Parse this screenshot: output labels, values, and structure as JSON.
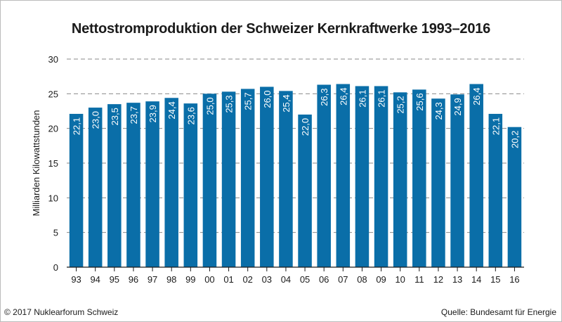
{
  "chart_data": {
    "type": "bar",
    "title": "Nettostromproduktion der Schweizer Kernkraftwerke 1993–2016",
    "ylabel": "Milliarden Kilowattstunden",
    "xlabel": "",
    "ylim": [
      0,
      30
    ],
    "yticks": [
      "0",
      "5",
      "10",
      "15",
      "20",
      "25",
      "30"
    ],
    "grid": true,
    "bar_color": "#0a6ea8",
    "categories": [
      "93",
      "94",
      "95",
      "96",
      "97",
      "98",
      "99",
      "00",
      "01",
      "02",
      "03",
      "04",
      "05",
      "06",
      "07",
      "08",
      "09",
      "10",
      "11",
      "12",
      "13",
      "14",
      "15",
      "16"
    ],
    "values": [
      22.1,
      23.0,
      23.5,
      23.7,
      23.9,
      24.4,
      23.6,
      25.0,
      25.3,
      25.7,
      26.0,
      25.4,
      22.0,
      26.3,
      26.4,
      26.1,
      26.1,
      25.2,
      25.6,
      24.3,
      24.9,
      26.4,
      22.1,
      20.2
    ],
    "value_labels": [
      "22,1",
      "23,0",
      "23,5",
      "23,7",
      "23,9",
      "24,4",
      "23,6",
      "25,0",
      "25,3",
      "25,7",
      "26,0",
      "25,4",
      "22,0",
      "26,3",
      "26,4",
      "26,1",
      "26,1",
      "25,2",
      "25,6",
      "24,3",
      "24,9",
      "26,4",
      "22,1",
      "20,2"
    ]
  },
  "footer": {
    "left": "© 2017 Nuklearforum Schweiz",
    "right": "Quelle: Bundesamt für Energie"
  }
}
